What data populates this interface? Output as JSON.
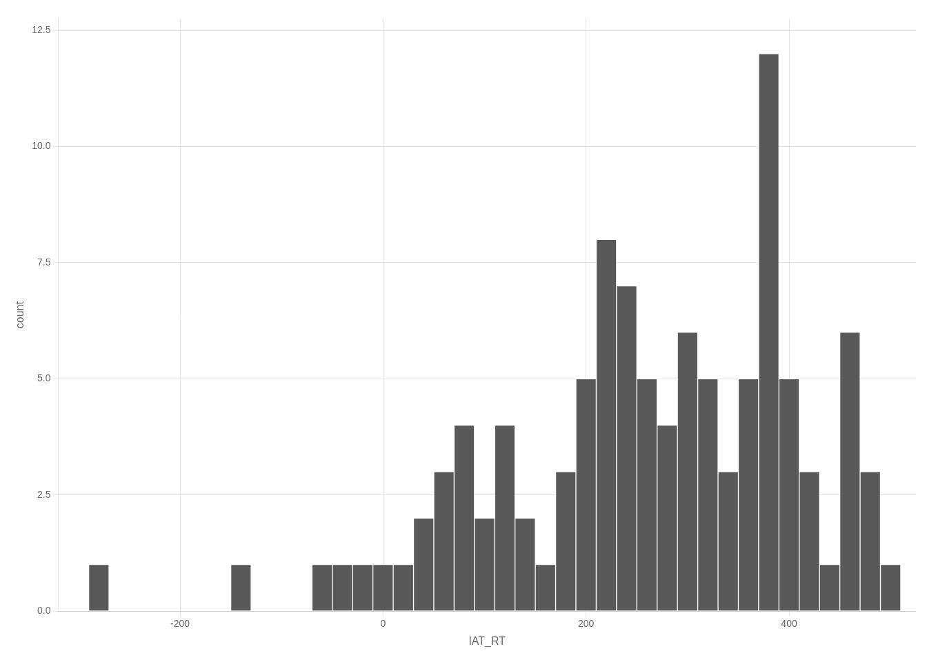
{
  "chart_data": {
    "type": "histogram",
    "xlabel": "IAT_RT",
    "ylabel": "count",
    "color": "#595959",
    "bins": [
      -290,
      -270,
      -250,
      -230,
      -210,
      -190,
      -170,
      -150,
      -130,
      -110,
      -90,
      -70,
      -50,
      -30,
      -10,
      10,
      30,
      50,
      70,
      90,
      110,
      130,
      150,
      170,
      190,
      210,
      230,
      250,
      270,
      290,
      310,
      330,
      350,
      370,
      390,
      410,
      430,
      450,
      470,
      490,
      510
    ],
    "values": [
      1,
      0,
      0,
      0,
      0,
      0,
      0,
      1,
      0,
      0,
      0,
      1,
      1,
      1,
      1,
      1,
      2,
      3,
      4,
      2,
      4,
      2,
      1,
      3,
      5,
      8,
      7,
      5,
      4,
      6,
      5,
      3,
      5,
      12,
      5,
      3,
      1,
      6,
      3,
      1
    ],
    "xlim": [
      -320,
      525
    ],
    "ylim": [
      0,
      12.75
    ],
    "xticks": [
      -200,
      0,
      200,
      400
    ],
    "yticks": [
      {
        "value": 0,
        "label": "0.0"
      },
      2.5,
      {
        "value": 5,
        "label": "5.0"
      },
      7.5,
      {
        "value": 10,
        "label": "10.0"
      },
      12.5
    ],
    "grid": true
  }
}
